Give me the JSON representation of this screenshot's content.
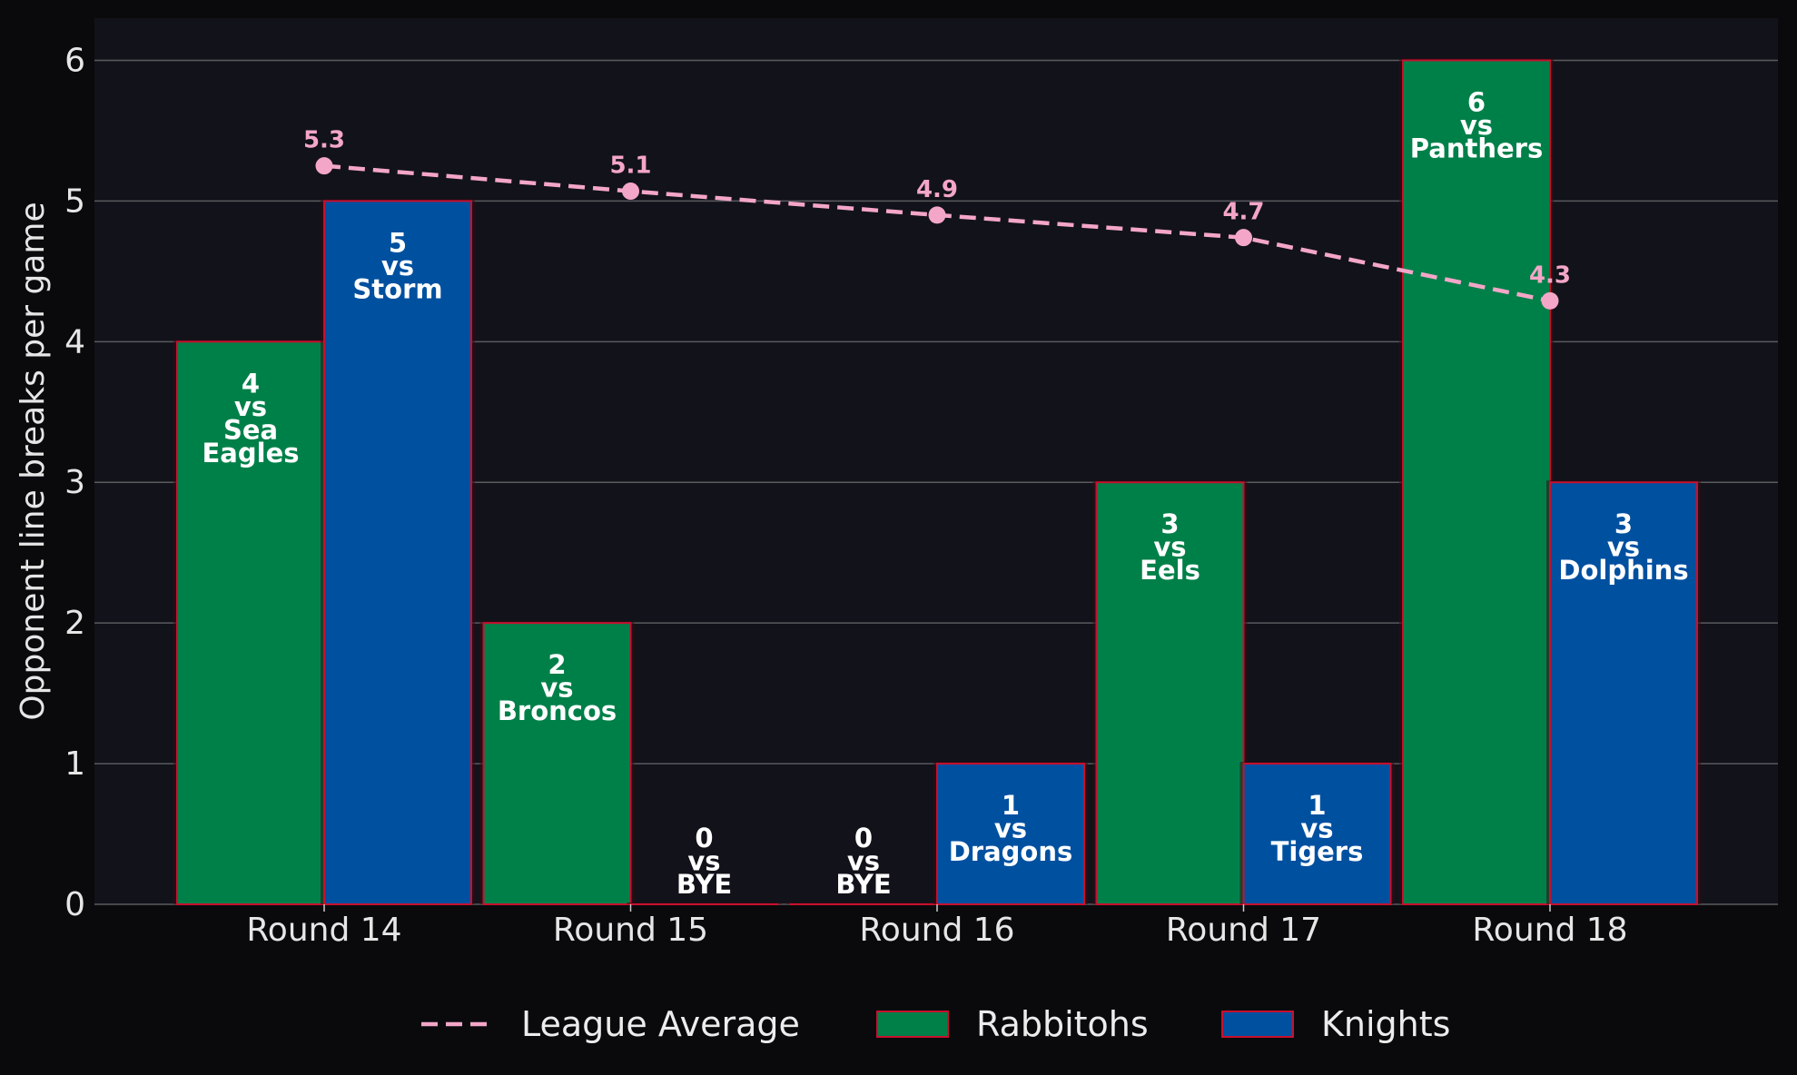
{
  "chart_data": {
    "type": "bar",
    "ylabel": "Opponent line breaks per game",
    "xlabel": "",
    "ylim": [
      0,
      6.3
    ],
    "yticks": [
      "0",
      "1",
      "2",
      "3",
      "4",
      "5",
      "6"
    ],
    "grid": true,
    "legend_position": "bottom-center",
    "categories": [
      "Round 14",
      "Round 15",
      "Round 16",
      "Round 17",
      "Round 18"
    ],
    "series": [
      {
        "name": "Rabbitohs",
        "color": "#008049",
        "values": [
          4,
          2,
          0,
          3,
          6
        ],
        "labels": [
          [
            "4",
            "vs",
            "Sea",
            "Eagles"
          ],
          [
            "2",
            "vs",
            "Broncos"
          ],
          [
            "0",
            "vs",
            "BYE"
          ],
          [
            "3",
            "vs",
            "Eels"
          ],
          [
            "6",
            "vs",
            "Panthers"
          ]
        ]
      },
      {
        "name": "Knights",
        "color": "#0050a0",
        "values": [
          5,
          0,
          1,
          1,
          3
        ],
        "labels": [
          [
            "5",
            "vs",
            "Storm"
          ],
          [
            "0",
            "vs",
            "BYE"
          ],
          [
            "1",
            "vs",
            "Dragons"
          ],
          [
            "1",
            "vs",
            "Tigers"
          ],
          [
            "3",
            "vs",
            "Dolphins"
          ]
        ]
      }
    ],
    "line_series": {
      "name": "League Average",
      "color": "#f4a6c8",
      "values": [
        5.25,
        5.07,
        4.9,
        4.74,
        4.29
      ],
      "labels": [
        "5.3",
        "5.1",
        "4.9",
        "4.7",
        "4.3"
      ]
    }
  }
}
